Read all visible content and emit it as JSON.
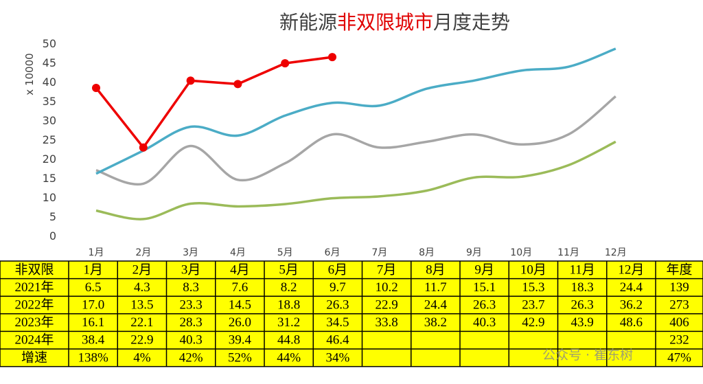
{
  "chart_data": {
    "type": "line",
    "title": [
      {
        "text": "新能源",
        "color": "#404040"
      },
      {
        "text": "非双限城市",
        "color": "#e00000"
      },
      {
        "text": "月度走势",
        "color": "#404040"
      }
    ],
    "y_label": "x 10000",
    "categories": [
      "1月",
      "2月",
      "3月",
      "4月",
      "5月",
      "6月",
      "7月",
      "8月",
      "9月",
      "10月",
      "11月",
      "12月"
    ],
    "ylim": [
      0,
      50
    ],
    "yticks": [
      0,
      5,
      10,
      15,
      20,
      25,
      30,
      35,
      40,
      45,
      50
    ],
    "series": [
      {
        "name": "2021年",
        "color": "#9bbb59",
        "smooth": true,
        "values": [
          6.5,
          4.3,
          8.3,
          7.6,
          8.2,
          9.7,
          10.2,
          11.7,
          15.1,
          15.3,
          18.3,
          24.4
        ],
        "value_labels": [
          "6.5",
          "4.3",
          "8.3",
          "7.6",
          "8.2",
          "9.7",
          "10.2",
          "11.7",
          "15.1",
          "15.3",
          "18.3",
          "24.4"
        ],
        "annual": 139
      },
      {
        "name": "2022年",
        "color": "#a6a6a6",
        "smooth": true,
        "values": [
          17.0,
          13.5,
          23.3,
          14.5,
          18.8,
          26.3,
          22.9,
          24.4,
          26.3,
          23.7,
          26.3,
          36.2
        ],
        "value_labels": [
          "17.0",
          "13.5",
          "23.3",
          "14.5",
          "18.8",
          "26.3",
          "22.9",
          "24.4",
          "26.3",
          "23.7",
          "26.3",
          "36.2"
        ],
        "annual": 273
      },
      {
        "name": "2023年",
        "color": "#4bacc6",
        "smooth": true,
        "values": [
          16.1,
          22.1,
          28.3,
          26.0,
          31.2,
          34.5,
          33.8,
          38.2,
          40.3,
          42.9,
          43.9,
          48.6
        ],
        "value_labels": [
          "16.1",
          "22.1",
          "28.3",
          "26.0",
          "31.2",
          "34.5",
          "33.8",
          "38.2",
          "40.3",
          "42.9",
          "43.9",
          "48.6"
        ],
        "annual": 406
      },
      {
        "name": "2024年",
        "color": "#ee0000",
        "smooth": false,
        "markers": true,
        "values": [
          38.4,
          22.9,
          40.3,
          39.4,
          44.8,
          46.4,
          null,
          null,
          null,
          null,
          null,
          null
        ],
        "value_labels": [
          "38.4",
          "22.9",
          "40.3",
          "39.4",
          "44.8",
          "46.4",
          null,
          null,
          null,
          null,
          null,
          null
        ],
        "annual": 232
      }
    ],
    "table": {
      "corner": "非双限",
      "annual_header": "年度",
      "growth": {
        "name": "增速",
        "values": [
          138,
          4,
          42,
          52,
          44,
          34,
          null,
          null,
          null,
          null,
          null,
          null
        ],
        "value_labels": [
          "138%",
          "4%",
          "42%",
          "52%",
          "44%",
          "34%",
          null,
          null,
          null,
          null,
          null,
          null
        ],
        "annual": 47,
        "annual_label": "47%"
      }
    },
    "watermark": "公众号 · 崔东树"
  }
}
